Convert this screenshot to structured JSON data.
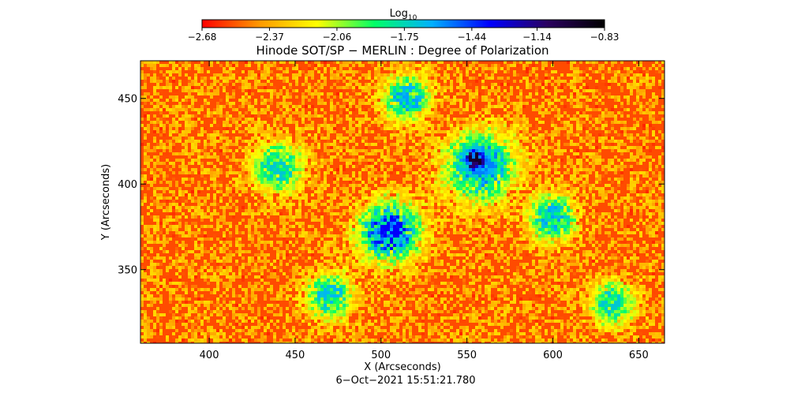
{
  "chart_data": {
    "type": "heatmap",
    "title": "Hinode SOT/SP − MERLIN : Degree of Polarization",
    "xlabel": "X (Arcseconds)",
    "ylabel": "Y (Arcseconds)",
    "xlim": [
      360,
      665
    ],
    "ylim": [
      307,
      472
    ],
    "xticks": [
      400,
      450,
      500,
      550,
      600,
      650
    ],
    "yticks": [
      350,
      400,
      450
    ],
    "timestamp": "6−Oct−2021 15:51:21.780",
    "colorbar": {
      "label_base": "Log",
      "label_sub": "10",
      "range": [
        -2.68,
        -0.83
      ],
      "tick_values": [
        -2.68,
        -2.37,
        -2.06,
        -1.75,
        -1.44,
        -1.14,
        -0.83
      ],
      "tick_labels": [
        "−2.68",
        "−2.37",
        "−2.06",
        "−1.75",
        "−1.44",
        "−1.14",
        "−0.83"
      ],
      "colors": [
        "#ff0000",
        "#ff9900",
        "#ffff00",
        "#00ff66",
        "#00b0ff",
        "#0000ff",
        "#2a0060",
        "#000000"
      ]
    },
    "features": [
      {
        "name": "bright-core",
        "x": 555,
        "y": 414,
        "r": 5,
        "value": -0.95
      },
      {
        "name": "core-ring",
        "x": 558,
        "y": 410,
        "r": 14,
        "value": -1.55
      },
      {
        "name": "central-cluster",
        "x": 505,
        "y": 372,
        "r": 12,
        "value": -1.35
      },
      {
        "name": "network-north",
        "x": 515,
        "y": 450,
        "r": 9,
        "value": -1.6
      },
      {
        "name": "network-west",
        "x": 440,
        "y": 410,
        "r": 10,
        "value": -1.7
      },
      {
        "name": "network-south",
        "x": 470,
        "y": 335,
        "r": 9,
        "value": -1.65
      },
      {
        "name": "network-east",
        "x": 635,
        "y": 330,
        "r": 9,
        "value": -1.7
      },
      {
        "name": "network-mid-east",
        "x": 600,
        "y": 380,
        "r": 9,
        "value": -1.6
      }
    ]
  }
}
